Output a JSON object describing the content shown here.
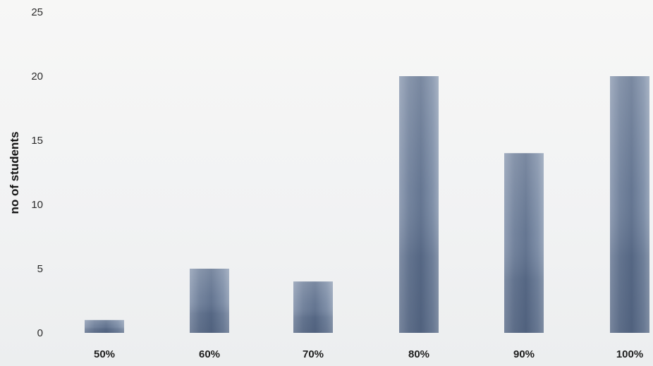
{
  "chart_data": {
    "type": "bar",
    "title": "",
    "xlabel": "",
    "ylabel": "no of students",
    "categories": [
      "50%",
      "60%",
      "70%",
      "80%",
      "90%",
      "100%"
    ],
    "values": [
      1,
      5,
      4,
      20,
      14,
      20
    ],
    "ylim": [
      0,
      25
    ],
    "yticks": [
      0,
      5,
      10,
      15,
      20,
      25
    ],
    "grid": false,
    "legend": "none",
    "bar_color": "#6e7f99"
  }
}
